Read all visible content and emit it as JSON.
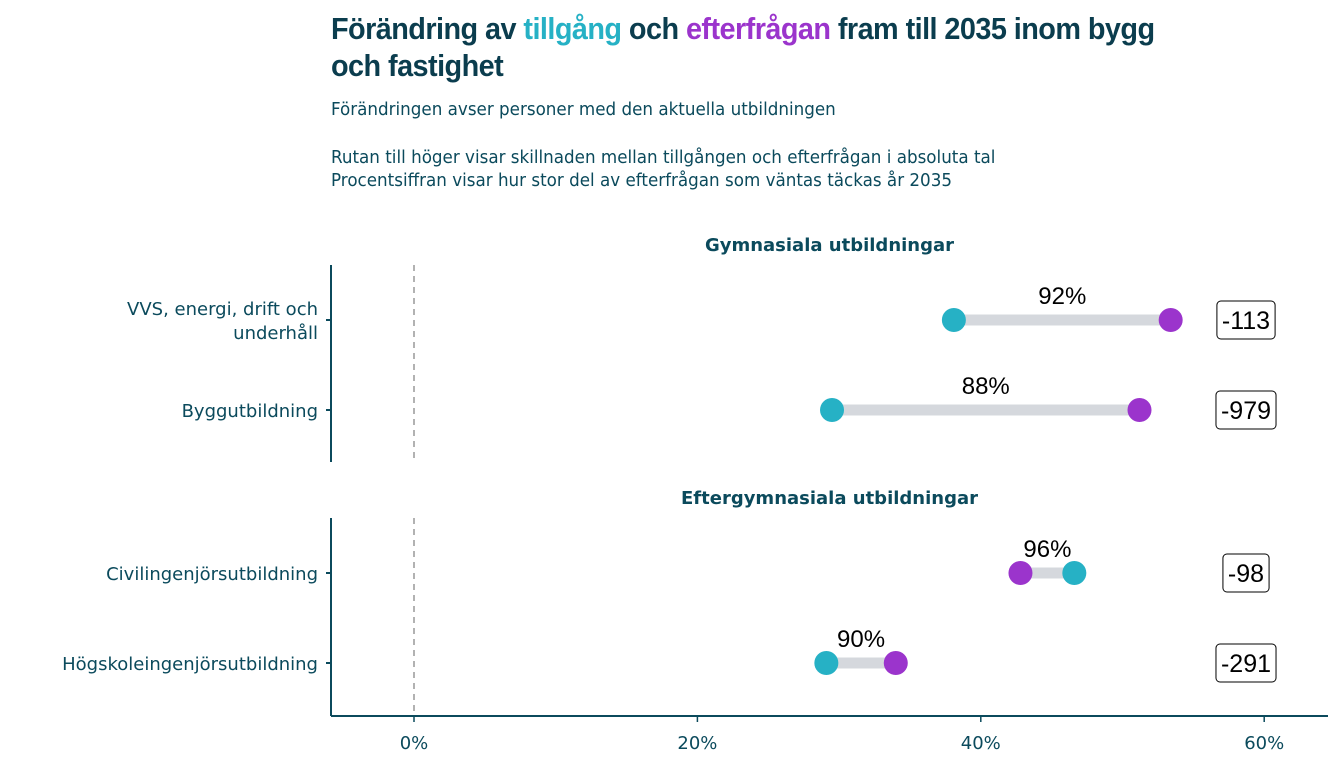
{
  "title": {
    "part1": "Förändring av ",
    "supply_word": "tillgång",
    "part2": " och ",
    "demand_word": "efterfrågan",
    "part3": " fram till 2035 inom bygg och fastighet"
  },
  "subtitle_lines": [
    "Förändringen avser personer med den aktuella utbildningen",
    "Rutan till höger visar skillnaden mellan tillgången och efterfrågan i absoluta tal",
    "Procentsiffran visar hur stor del av efterfrågan som väntas täckas år 2035"
  ],
  "colors": {
    "supply": "#26b1c5",
    "demand": "#9b34cc",
    "segment": "#d5d8dd",
    "axis": "#0b4a5c",
    "text": "#0b3d4e",
    "zero_line": "#999999"
  },
  "chart_data": {
    "type": "dumbbell",
    "title": "Förändring av tillgång och efterfrågan fram till 2035 inom bygg och fastighet",
    "xlabel": "",
    "ylabel": "",
    "xlim": [
      -6,
      65
    ],
    "x_ticks": [
      0,
      20,
      40,
      60
    ],
    "x_tick_labels": [
      "0%",
      "20%",
      "40%",
      "60%"
    ],
    "reference_line": 0,
    "series_names": {
      "supply": "tillgång",
      "demand": "efterfrågan"
    },
    "facets": [
      {
        "name": "Gymnasiala utbildningar",
        "rows": [
          {
            "label": [
              "VVS, energi, drift och",
              "underhåll"
            ],
            "supply": 38.1,
            "demand": 53.4,
            "coverage_label": "92%",
            "gap_label": "-113"
          },
          {
            "label": [
              "Byggutbildning"
            ],
            "supply": 29.5,
            "demand": 51.2,
            "coverage_label": "88%",
            "gap_label": "-979"
          }
        ]
      },
      {
        "name": "Eftergymnasiala utbildningar",
        "rows": [
          {
            "label": [
              "Civilingenjörsutbildning"
            ],
            "supply": 46.6,
            "demand": 42.8,
            "coverage_label": "96%",
            "gap_label": "-98"
          },
          {
            "label": [
              "Högskoleingenjörsutbildning"
            ],
            "supply": 29.1,
            "demand": 34.0,
            "coverage_label": "90%",
            "gap_label": "-291"
          }
        ]
      }
    ]
  }
}
